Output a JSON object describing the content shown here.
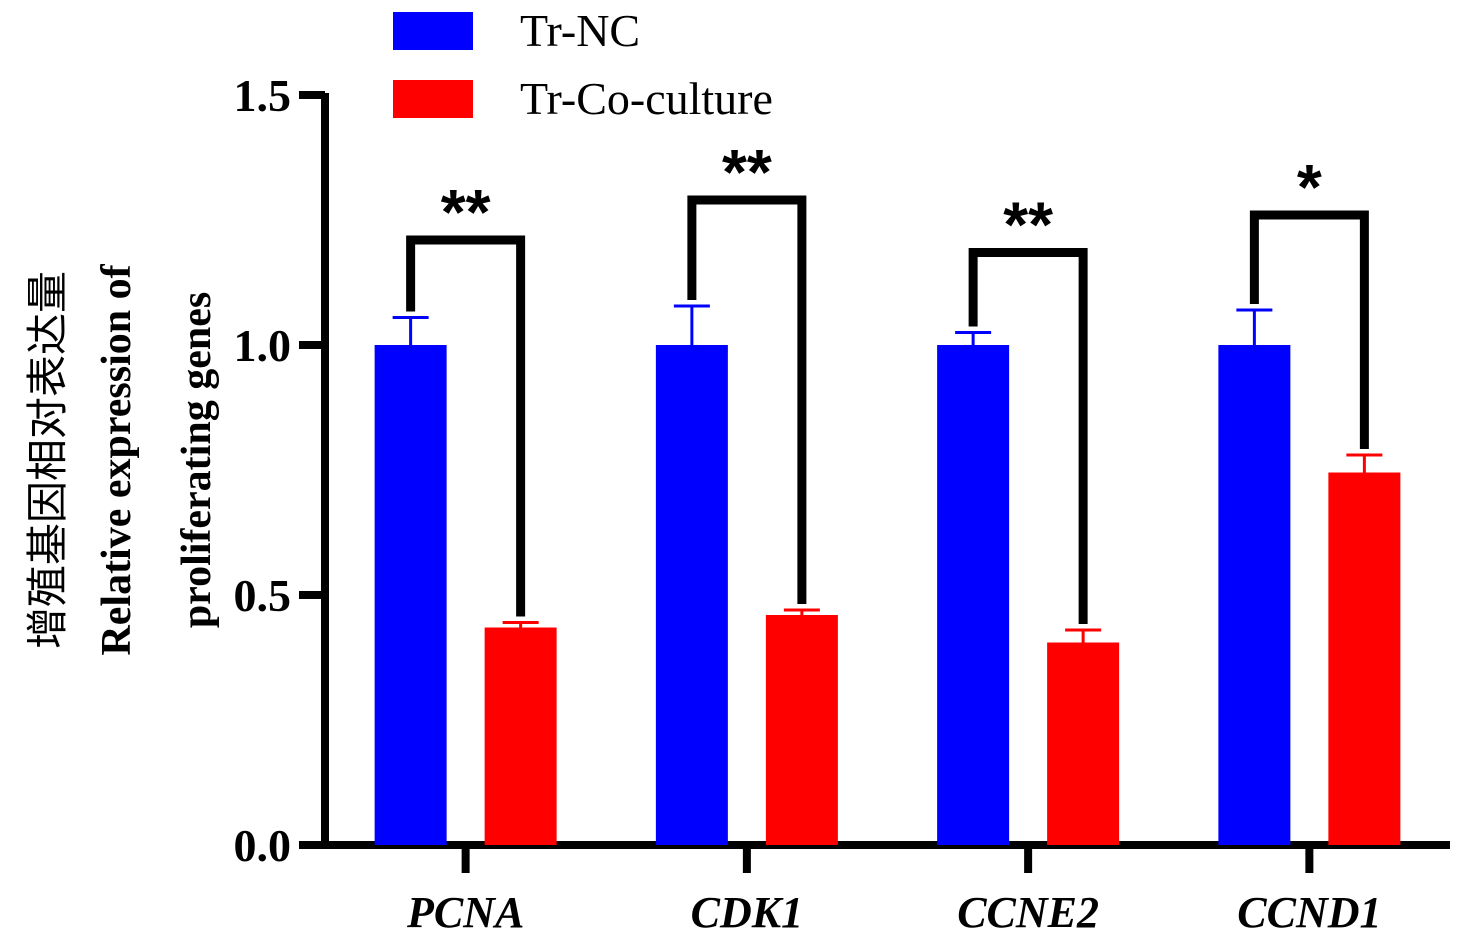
{
  "chart_data": {
    "type": "bar",
    "categories": [
      "PCNA",
      "CDK1",
      "CCNE2",
      "CCND1"
    ],
    "series": [
      {
        "name": "Tr-NC",
        "color": "#0000FF",
        "values": [
          1.0,
          1.0,
          1.0,
          1.0
        ],
        "errors": [
          0.055,
          0.078,
          0.025,
          0.07
        ]
      },
      {
        "name": "Tr-Co-culture",
        "color": "#FF0000",
        "values": [
          0.435,
          0.46,
          0.405,
          0.745
        ],
        "errors": [
          0.01,
          0.01,
          0.025,
          0.035
        ]
      }
    ],
    "ylabel_lines": [
      "增殖基因相对表达量",
      "Relative expression of",
      "proliferating genes"
    ],
    "ylim": [
      0,
      1.5
    ],
    "yticks": [
      "0.0",
      "0.5",
      "1.0",
      "1.5"
    ],
    "significance": [
      {
        "label": "**",
        "bracket_y": 1.21
      },
      {
        "label": "**",
        "bracket_y": 1.29
      },
      {
        "label": "**",
        "bracket_y": 1.185
      },
      {
        "label": "*",
        "bracket_y": 1.26
      }
    ],
    "legend_position": "top-left"
  }
}
